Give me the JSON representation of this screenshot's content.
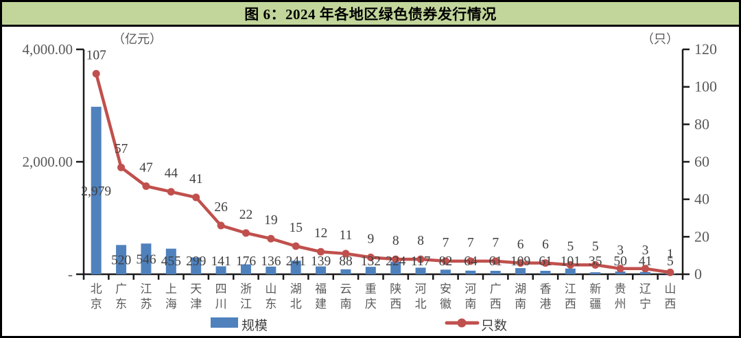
{
  "figure": {
    "title": "图 6：2024 年各地区绿色债券发行情况",
    "title_bg_color": "#c2d69b"
  },
  "chart_data": {
    "type": "bar",
    "subtype": "combo-bar-line-dual-axis",
    "categories": [
      "北京",
      "广东",
      "江苏",
      "上海",
      "天津",
      "四川",
      "浙江",
      "山东",
      "湖北",
      "福建",
      "云南",
      "重庆",
      "陕西",
      "河北",
      "安徽",
      "河南",
      "广西",
      "湖南",
      "香港",
      "江西",
      "新疆",
      "贵州",
      "辽宁",
      "山西"
    ],
    "series": [
      {
        "name": "规模",
        "type": "bar",
        "axis": "left",
        "unit": "亿元",
        "color": "#4f81bd",
        "values": [
          2979,
          520,
          546,
          455,
          299,
          141,
          176,
          136,
          241,
          139,
          88,
          132,
          224,
          117,
          82,
          64,
          61,
          109,
          61,
          101,
          35,
          50,
          41,
          5
        ]
      },
      {
        "name": "只数",
        "type": "line",
        "axis": "right",
        "unit": "只",
        "color": "#c0504d",
        "values": [
          107,
          57,
          47,
          44,
          41,
          26,
          22,
          19,
          15,
          12,
          11,
          9,
          8,
          8,
          7,
          7,
          7,
          6,
          6,
          5,
          5,
          3,
          3,
          1
        ]
      }
    ],
    "left_axis": {
      "unit_label": "（亿元）",
      "max": 4000,
      "min": 0,
      "tick_values": [
        4000,
        2000,
        0
      ],
      "tick_labels": [
        "4,000.00",
        "2,000.00",
        "-"
      ]
    },
    "right_axis": {
      "unit_label": "（只）",
      "max": 120,
      "min": 0,
      "tick_values": [
        120,
        100,
        80,
        60,
        40,
        20,
        0
      ],
      "tick_labels": [
        "120",
        "100",
        "80",
        "60",
        "40",
        "20",
        "0"
      ]
    },
    "legend": [
      {
        "label": "规模",
        "marker": "bar-swatch",
        "color": "#4f81bd"
      },
      {
        "label": "只数",
        "marker": "line-dot",
        "color": "#c0504d"
      }
    ],
    "grid": "off",
    "legend_position": "bottom",
    "label_color": "#404040",
    "axis_text_color": "#595959",
    "axis_line_color": "#1a1a1a"
  }
}
